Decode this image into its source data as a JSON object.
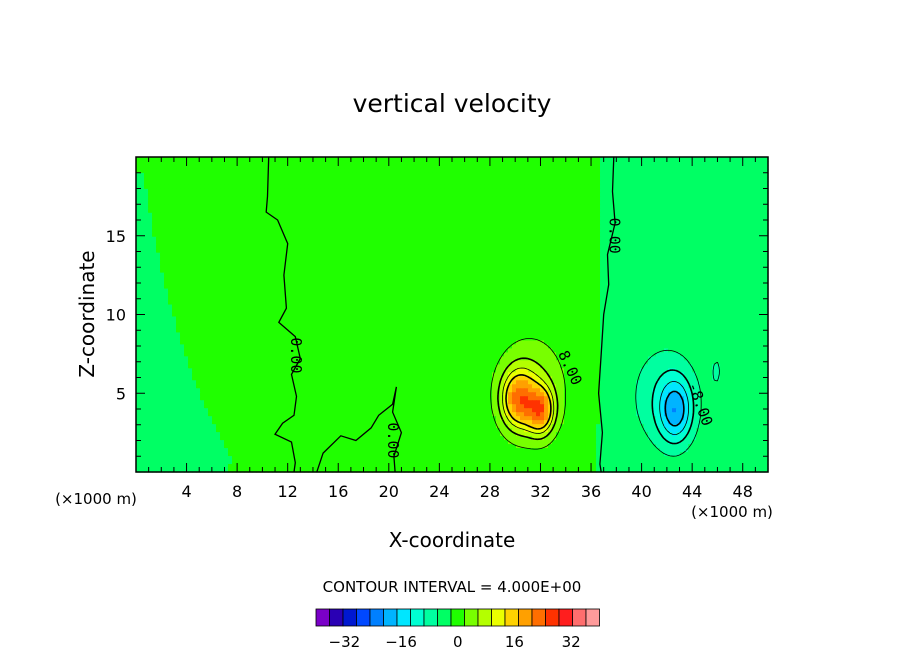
{
  "chart_data": {
    "type": "heatmap",
    "title": "vertical velocity",
    "xlabel": "X-coordinate",
    "ylabel": "Z-coordinate",
    "x_unit": "(×1000 m)",
    "y_unit": "(×1000 m)",
    "xlim": [
      0,
      50
    ],
    "ylim": [
      0,
      20
    ],
    "x_ticks": [
      4,
      8,
      12,
      16,
      20,
      24,
      28,
      32,
      36,
      40,
      44,
      48
    ],
    "y_ticks": [
      5,
      10,
      15
    ],
    "contour_interval_text": "CONTOUR INTERVAL = 4.000E+00",
    "contour_interval": 4,
    "contour_labels": [
      {
        "text": "0.00",
        "x": 37.8,
        "z": 15.0,
        "rotation": 90
      },
      {
        "text": "0.00",
        "x": 12.6,
        "z": 7.4,
        "rotation": 90
      },
      {
        "text": "0.00",
        "x": 20.3,
        "z": 2.0,
        "rotation": 90
      },
      {
        "text": "8.00",
        "x": 34.3,
        "z": 6.6,
        "rotation": 65
      },
      {
        "text": "-8.00",
        "x": 44.6,
        "z": 4.3,
        "rotation": 70
      }
    ],
    "field_features": [
      {
        "kind": "updraft",
        "x": 30.5,
        "z": 4.3,
        "max": 20
      },
      {
        "kind": "downdraft",
        "x": 42.5,
        "z": 4.0,
        "min": -16
      }
    ],
    "colorbar": {
      "tick_labels": [
        "−32",
        "−16",
        "0",
        "16",
        "32"
      ],
      "tick_values": [
        -32,
        -16,
        0,
        16,
        32
      ],
      "levels": [
        -40,
        -36,
        -32,
        -28,
        -24,
        -20,
        -16,
        -12,
        -8,
        -4,
        0,
        4,
        8,
        12,
        16,
        20,
        24,
        28,
        32,
        36,
        40
      ],
      "colors": [
        "#7a00c8",
        "#2a00b4",
        "#0018d0",
        "#0048ff",
        "#0080ff",
        "#00b4ff",
        "#00e6ff",
        "#00ffd2",
        "#00ffa0",
        "#00ff64",
        "#20ff00",
        "#78ff00",
        "#b4ff00",
        "#ebff00",
        "#ffd200",
        "#ffa000",
        "#ff6e00",
        "#ff3200",
        "#ff1e1e",
        "#ff6e6e",
        "#ff9b9b"
      ]
    }
  }
}
